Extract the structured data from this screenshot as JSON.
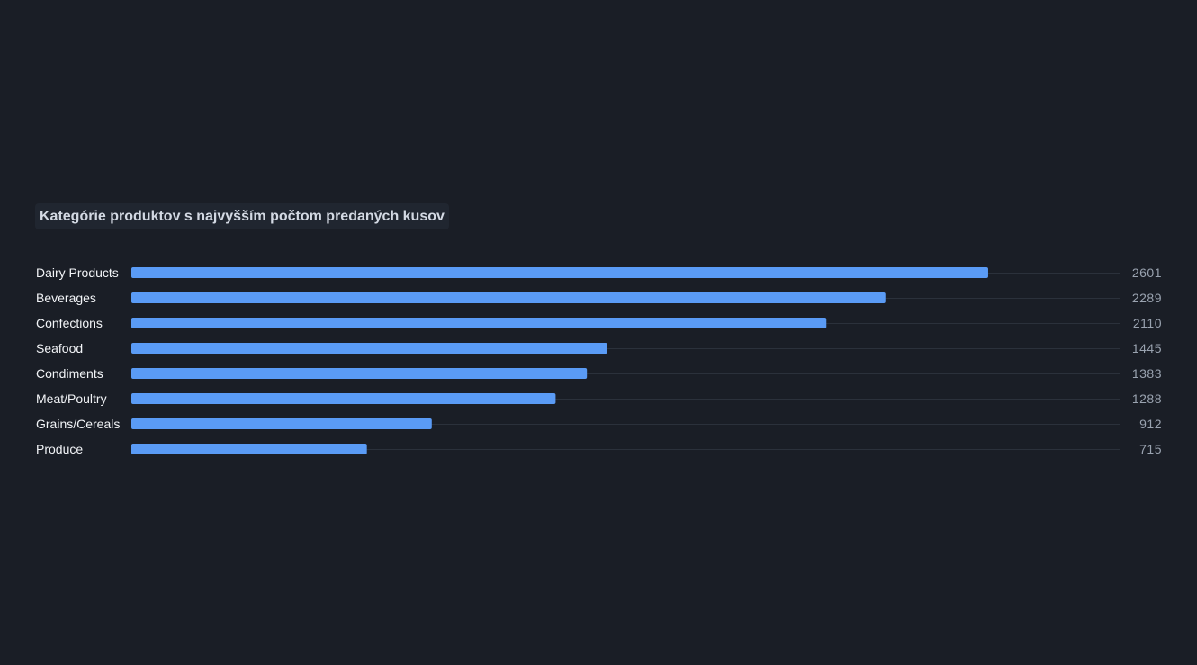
{
  "chart_data": {
    "type": "bar",
    "orientation": "horizontal",
    "title": "Kategórie produktov s najvyšším počtom predaných kusov",
    "categories": [
      "Dairy Products",
      "Beverages",
      "Confections",
      "Seafood",
      "Condiments",
      "Meat/Poultry",
      "Grains/Cereals",
      "Produce"
    ],
    "values": [
      2601,
      2289,
      2110,
      1445,
      1383,
      1288,
      912,
      715
    ],
    "xlim": [
      0,
      3000
    ],
    "grid": false,
    "legend": "none",
    "colors": {
      "bar": "#5a9bf5",
      "background": "#1a1e26",
      "track": "#2b313b"
    }
  }
}
